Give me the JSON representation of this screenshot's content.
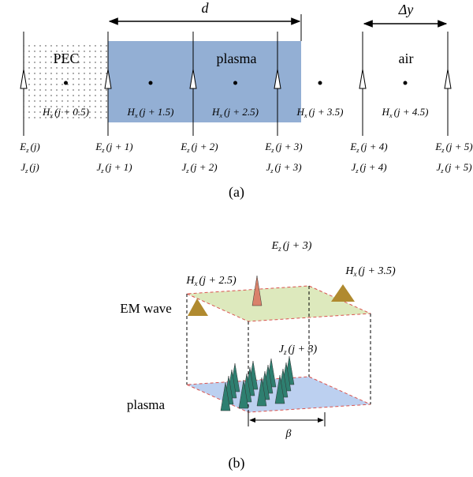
{
  "panel_a": {
    "width_label": "d",
    "step_label": "Δy",
    "regions": [
      "PEC",
      "plasma",
      "air"
    ],
    "h_labels": [
      {
        "base": "H",
        "sub": "x",
        "arg": "(j + 0.5)"
      },
      {
        "base": "H",
        "sub": "x",
        "arg": "(j + 1.5)"
      },
      {
        "base": "H",
        "sub": "x",
        "arg": "(j + 2.5)"
      },
      {
        "base": "H",
        "sub": "x",
        "arg": "(j + 3.5)"
      },
      {
        "base": "H",
        "sub": "x",
        "arg": "(j + 4.5)"
      }
    ],
    "e_labels": [
      {
        "base": "E",
        "sub": "z",
        "arg": "(j)"
      },
      {
        "base": "E",
        "sub": "z",
        "arg": "(j + 1)"
      },
      {
        "base": "E",
        "sub": "z",
        "arg": "(j + 2)"
      },
      {
        "base": "E",
        "sub": "z",
        "arg": "(j + 3)"
      },
      {
        "base": "E",
        "sub": "z",
        "arg": "(j + 4)"
      },
      {
        "base": "E",
        "sub": "z",
        "arg": "(j + 5)"
      }
    ],
    "j_labels": [
      {
        "base": "J",
        "sub": "z",
        "arg": "(j)"
      },
      {
        "base": "J",
        "sub": "z",
        "arg": "(j + 1)"
      },
      {
        "base": "J",
        "sub": "z",
        "arg": "(j + 2)"
      },
      {
        "base": "J",
        "sub": "z",
        "arg": "(j + 3)"
      },
      {
        "base": "J",
        "sub": "z",
        "arg": "(j + 4)"
      },
      {
        "base": "J",
        "sub": "z",
        "arg": "(j + 5)"
      }
    ],
    "caption": "(a)"
  },
  "panel_b": {
    "e_label": {
      "base": "E",
      "sub": "z",
      "arg": "(j + 3)"
    },
    "h_left": {
      "base": "H",
      "sub": "x",
      "arg": "(j + 2.5)"
    },
    "h_right": {
      "base": "H",
      "sub": "x",
      "arg": "(j + 3.5)"
    },
    "wave_label": "EM wave",
    "j_label": {
      "base": "J",
      "sub": "z",
      "arg": "(j + 3)"
    },
    "plasma_label": "plasma",
    "beta": "β",
    "caption": "(b)"
  }
}
